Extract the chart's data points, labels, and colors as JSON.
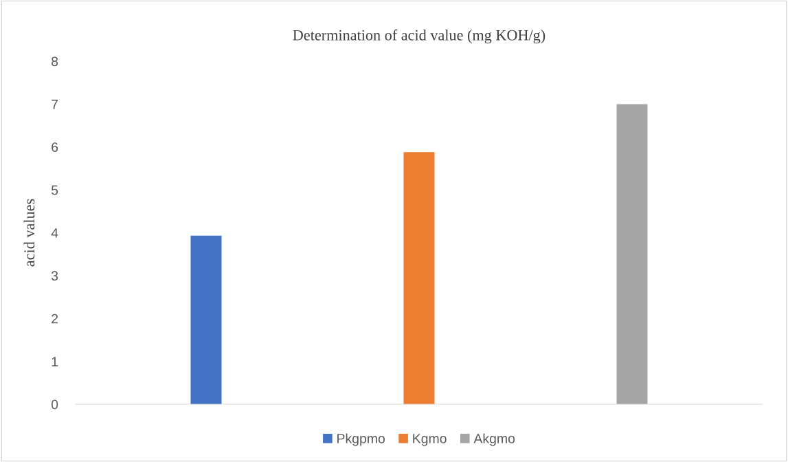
{
  "chart_data": {
    "type": "bar",
    "title": "Determination of acid value (mg KOH/g)",
    "ylabel": "acid values",
    "categories": [
      null
    ],
    "series": [
      {
        "name": "Pkgpmo",
        "color": "#4472c4",
        "values": [
          3.93
        ]
      },
      {
        "name": "Kgmo",
        "color": "#ed7d31",
        "values": [
          5.88
        ]
      },
      {
        "name": "Akgmo",
        "color": "#a5a5a5",
        "values": [
          7.0
        ]
      }
    ],
    "ylim": [
      0,
      8
    ],
    "yticks": [
      0,
      1,
      2,
      3,
      4,
      5,
      6,
      7,
      8
    ],
    "grid": false,
    "legend": "bottom"
  }
}
